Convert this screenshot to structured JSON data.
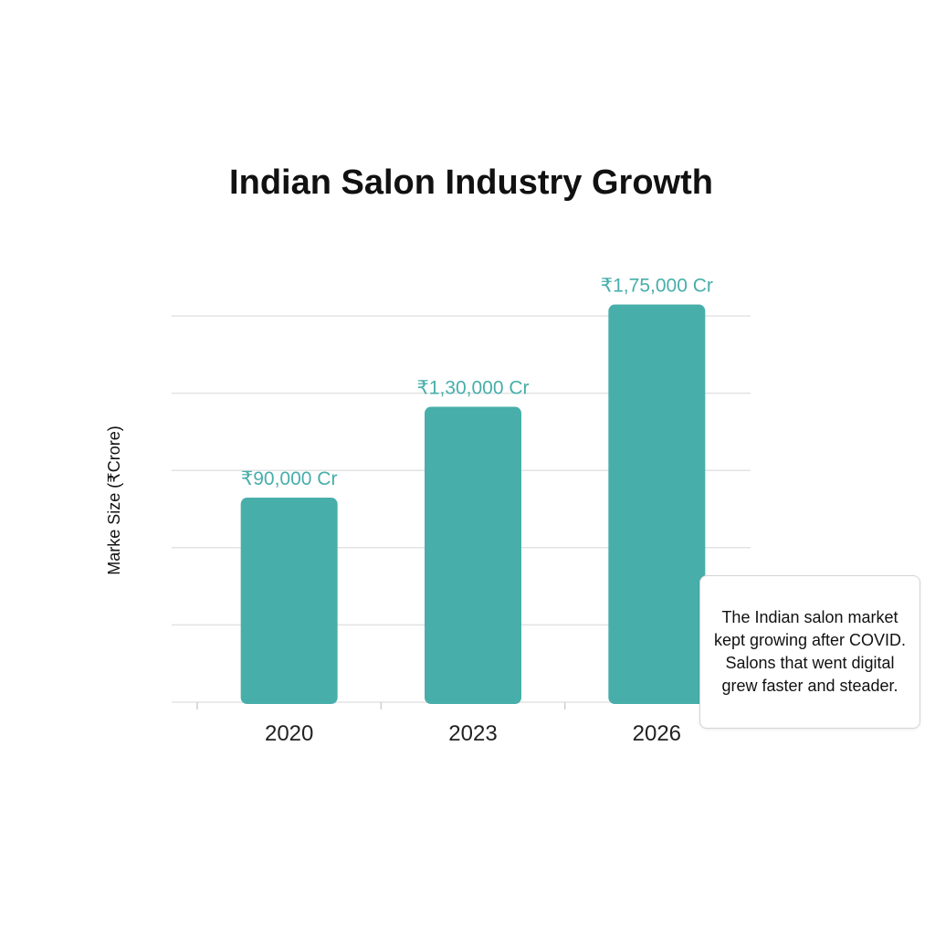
{
  "colors": {
    "bar": "#47aeaa",
    "data_label": "#47aeaa",
    "grid": "#e3e3e3",
    "axis": "#cfcfcf"
  },
  "chart_data": {
    "type": "bar",
    "title": "Indian Salon Industry Growth",
    "xlabel": "",
    "ylabel": "Marke Size (₹Crore)",
    "categories": [
      "2020",
      "2023",
      "2026"
    ],
    "values": [
      90000,
      130000,
      175000
    ],
    "data_labels": [
      "₹90,000 Cr",
      "₹1,30,000 Cr",
      "₹1,75,000 Cr"
    ],
    "ylim": [
      0,
      170000
    ],
    "grid": true,
    "legend": "none"
  },
  "annotation": {
    "text": "The Indian salon market kept growing after COVID. Salons that went digital grew faster and steader."
  }
}
